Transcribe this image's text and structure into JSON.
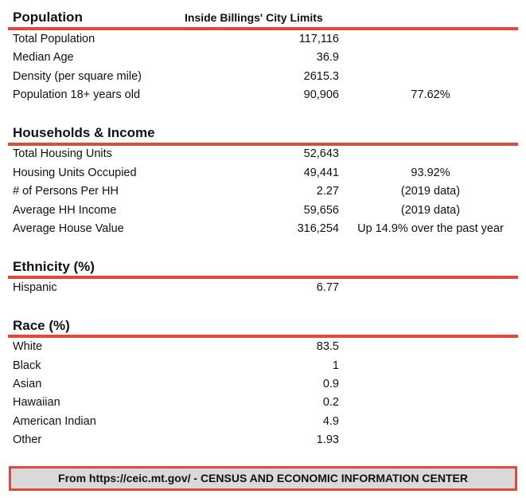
{
  "header_subtitle": "Inside Billings' City Limits",
  "accent_color": "#e04a3c",
  "sections": {
    "population": {
      "title": "Population",
      "rows": [
        {
          "label": "Total Population",
          "value": "117,116",
          "note": ""
        },
        {
          "label": "Median Age",
          "value": "36.9",
          "note": ""
        },
        {
          "label": "Density (per square mile)",
          "value": "2615.3",
          "note": ""
        },
        {
          "label": "Population 18+ years old",
          "value": "90,906",
          "note": "77.62%"
        }
      ]
    },
    "households": {
      "title": "Households & Income",
      "rows": [
        {
          "label": "Total Housing Units",
          "value": "52,643",
          "note": ""
        },
        {
          "label": "Housing Units Occupied",
          "value": "49,441",
          "note": "93.92%"
        },
        {
          "label": "# of Persons Per HH",
          "value": "2.27",
          "note": "(2019 data)"
        },
        {
          "label": "Average HH Income",
          "value": "59,656",
          "note": "(2019 data)"
        },
        {
          "label": "Average House Value",
          "value": "316,254",
          "note": "Up 14.9% over the past year"
        }
      ]
    },
    "ethnicity": {
      "title": "Ethnicity (%)",
      "rows": [
        {
          "label": "Hispanic",
          "value": "6.77",
          "note": ""
        }
      ]
    },
    "race": {
      "title": "Race (%)",
      "rows": [
        {
          "label": "White",
          "value": "83.5",
          "note": ""
        },
        {
          "label": "Black",
          "value": "1",
          "note": ""
        },
        {
          "label": "Asian",
          "value": "0.9",
          "note": ""
        },
        {
          "label": "Hawaiian",
          "value": "0.2",
          "note": ""
        },
        {
          "label": "American Indian",
          "value": "4.9",
          "note": ""
        },
        {
          "label": "Other",
          "value": "1.93",
          "note": ""
        }
      ]
    }
  },
  "footer": "From https://ceic.mt.gov/ - CENSUS AND ECONOMIC INFORMATION CENTER"
}
